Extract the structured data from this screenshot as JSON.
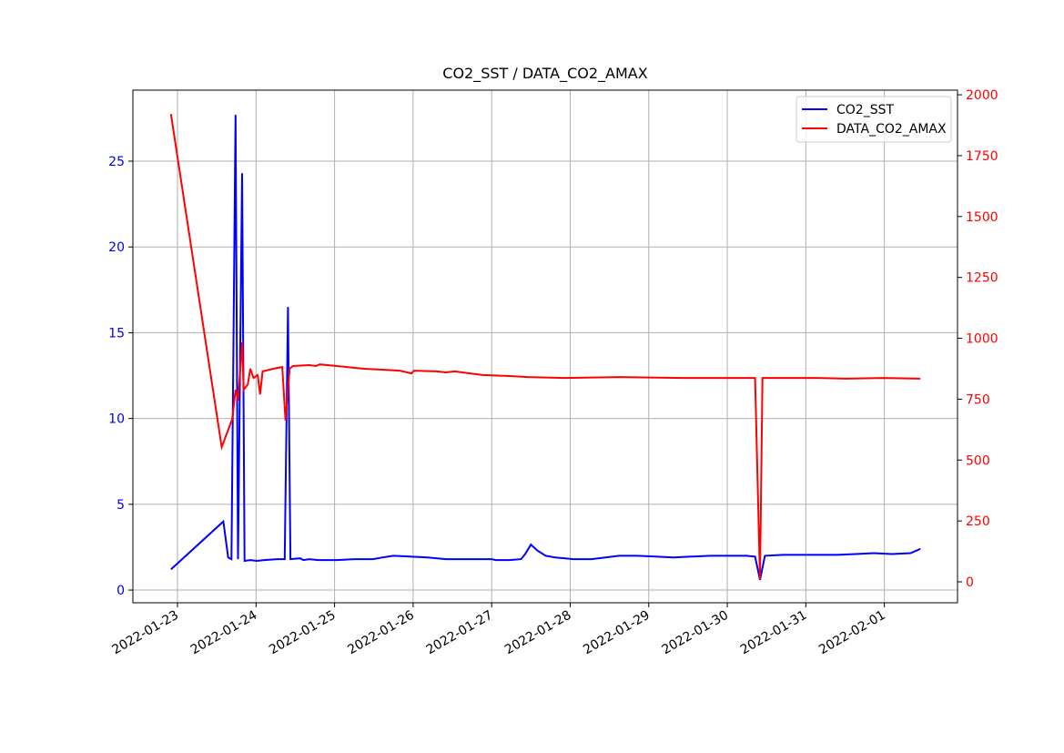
{
  "chart_data": {
    "type": "line",
    "title": "CO2_SST / DATA_CO2_AMAX",
    "grid": true,
    "legend": "upper right",
    "xlim": [
      "2022-01-22T10:22",
      "2022-02-01T22:21"
    ],
    "xticks": [
      "2022-01-23",
      "2022-01-24",
      "2022-01-25",
      "2022-01-26",
      "2022-01-27",
      "2022-01-28",
      "2022-01-29",
      "2022-01-30",
      "2022-01-31",
      "2022-02-01"
    ],
    "ylim": [
      -0.74,
      29.14
    ],
    "yticks": [
      0,
      5,
      10,
      15,
      20,
      25
    ],
    "y2lim": [
      -86,
      2019
    ],
    "y2ticks": [
      0,
      250,
      500,
      750,
      1000,
      1250,
      1500,
      1750,
      2000
    ],
    "series": [
      {
        "name": "CO2_SST",
        "color": "#0000ff",
        "x": [
          "2022-01-22T22:00",
          "2022-01-23T14:00",
          "2022-01-23T15:30",
          "2022-01-23T16:30",
          "2022-01-23T17:45",
          "2022-01-23T18:30",
          "2022-01-23T19:45",
          "2022-01-23T20:30",
          "2022-01-23T22:15",
          "2022-01-24T00:15",
          "2022-01-24T02:30",
          "2022-01-24T06:30",
          "2022-01-24T08:45",
          "2022-01-24T09:45",
          "2022-01-24T10:30",
          "2022-01-24T13:30",
          "2022-01-24T14:30",
          "2022-01-24T16:15",
          "2022-01-24T19:00",
          "2022-01-25T00:45",
          "2022-01-25T06:15",
          "2022-01-25T11:45",
          "2022-01-25T14:30",
          "2022-01-25T18:00",
          "2022-01-25T23:00",
          "2022-01-26T04:30",
          "2022-01-26T10:00",
          "2022-01-26T18:30",
          "2022-01-27T00:00",
          "2022-01-27T01:15",
          "2022-01-27T05:30",
          "2022-01-27T09:00",
          "2022-01-27T10:15",
          "2022-01-27T12:00",
          "2022-01-27T14:00",
          "2022-01-27T16:30",
          "2022-01-27T19:30",
          "2022-01-28T01:00",
          "2022-01-28T06:30",
          "2022-01-28T10:45",
          "2022-01-28T15:00",
          "2022-01-28T20:30",
          "2022-01-29T02:00",
          "2022-01-29T07:30",
          "2022-01-29T13:00",
          "2022-01-29T18:45",
          "2022-01-30T00:15",
          "2022-01-30T05:45",
          "2022-01-30T08:30",
          "2022-01-30T10:00",
          "2022-01-30T11:30",
          "2022-01-30T17:00",
          "2022-01-30T22:30",
          "2022-01-31T04:00",
          "2022-01-31T09:30",
          "2022-01-31T15:15",
          "2022-01-31T20:45",
          "2022-02-01T02:15",
          "2022-02-01T08:00",
          "2022-02-01T11:00"
        ],
        "values": [
          1.2,
          4.0,
          1.9,
          1.8,
          27.7,
          1.8,
          24.3,
          1.7,
          1.75,
          1.7,
          1.75,
          1.8,
          1.8,
          16.5,
          1.8,
          1.85,
          1.75,
          1.8,
          1.75,
          1.75,
          1.8,
          1.8,
          1.9,
          2.0,
          1.95,
          1.9,
          1.8,
          1.8,
          1.8,
          1.75,
          1.75,
          1.8,
          2.1,
          2.65,
          2.3,
          2.0,
          1.9,
          1.8,
          1.8,
          1.9,
          2.0,
          2.0,
          1.95,
          1.9,
          1.95,
          2.0,
          2.0,
          2.0,
          1.95,
          0.6,
          2.0,
          2.05,
          2.05,
          2.05,
          2.05,
          2.1,
          2.15,
          2.1,
          2.15,
          2.4
        ]
      },
      {
        "name": "DATA_CO2_AMAX",
        "color": "#ff0000",
        "axis": "y2",
        "x": [
          "2022-01-22T22:00",
          "2022-01-23T13:30",
          "2022-01-23T16:45",
          "2022-01-23T17:45",
          "2022-01-23T18:30",
          "2022-01-23T19:45",
          "2022-01-23T20:15",
          "2022-01-23T21:30",
          "2022-01-23T22:15",
          "2022-01-23T23:15",
          "2022-01-24T00:30",
          "2022-01-24T01:15",
          "2022-01-24T02:00",
          "2022-01-24T05:15",
          "2022-01-24T08:00",
          "2022-01-24T09:00",
          "2022-01-24T10:15",
          "2022-01-24T11:15",
          "2022-01-24T16:15",
          "2022-01-24T18:15",
          "2022-01-24T19:30",
          "2022-01-25T00:45",
          "2022-01-25T09:00",
          "2022-01-25T14:30",
          "2022-01-25T20:00",
          "2022-01-25T23:30",
          "2022-01-26T00:15",
          "2022-01-26T07:15",
          "2022-01-26T10:00",
          "2022-01-26T12:45",
          "2022-01-26T21:15",
          "2022-01-27T05:30",
          "2022-01-27T11:00",
          "2022-01-27T22:15",
          "2022-01-28T15:00",
          "2022-01-29T10:15",
          "2022-01-30T08:30",
          "2022-01-30T10:00",
          "2022-01-30T10:45",
          "2022-01-31T04:00",
          "2022-01-31T12:15",
          "2022-01-31T23:30",
          "2022-02-01T11:00"
        ],
        "values": [
          1921,
          553,
          669,
          789,
          744,
          983,
          789,
          811,
          875,
          837,
          849,
          770,
          864,
          875,
          882,
          662,
          875,
          886,
          890,
          886,
          893,
          886,
          875,
          871,
          867,
          856,
          867,
          864,
          860,
          864,
          849,
          845,
          841,
          837,
          841,
          837,
          837,
          11,
          837,
          837,
          834,
          837,
          834
        ]
      }
    ]
  }
}
